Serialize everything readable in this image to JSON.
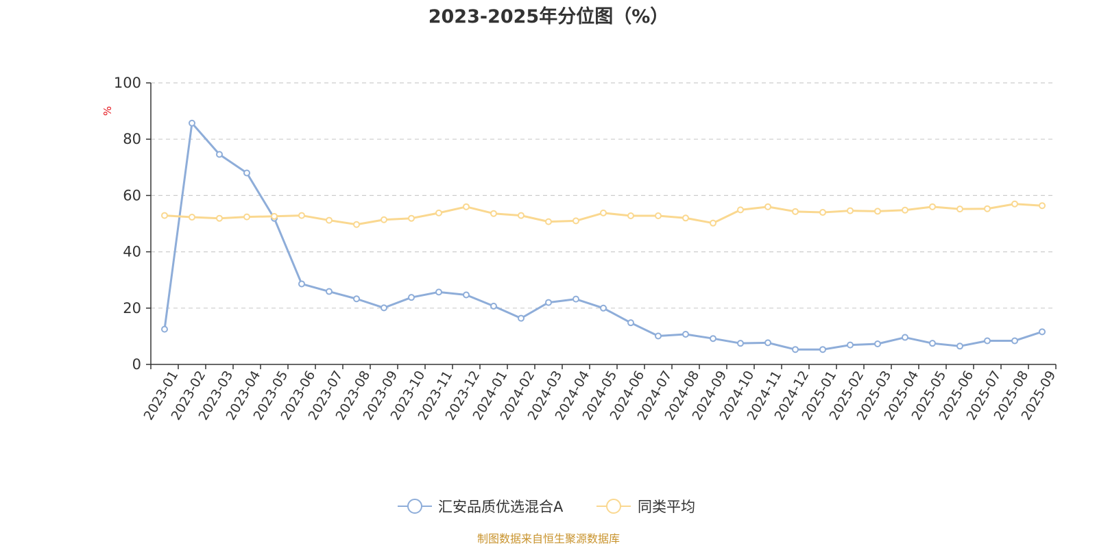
{
  "chart_data": {
    "type": "line",
    "title": "2023-2025年分位图（%）",
    "ylabel": "%",
    "ylim": [
      0,
      100
    ],
    "yticks": [
      0,
      20,
      40,
      60,
      80,
      100
    ],
    "grid": true,
    "legend_position": "bottom",
    "categories": [
      "2023-01",
      "2023-02",
      "2023-03",
      "2023-04",
      "2023-05",
      "2023-06",
      "2023-07",
      "2023-08",
      "2023-09",
      "2023-10",
      "2023-11",
      "2023-12",
      "2024-01",
      "2024-02",
      "2024-03",
      "2024-04",
      "2024-05",
      "2024-06",
      "2024-07",
      "2024-08",
      "2024-09",
      "2024-10",
      "2024-11",
      "2024-12",
      "2025-01",
      "2025-02",
      "2025-03",
      "2025-04",
      "2025-05",
      "2025-06",
      "2025-07",
      "2025-08",
      "2025-09"
    ],
    "series": [
      {
        "name": "汇安品质优选混合A",
        "color": "#8eadd9",
        "values": [
          12.5,
          85.7,
          74.6,
          68.0,
          51.9,
          28.6,
          25.9,
          23.3,
          20.1,
          23.8,
          25.7,
          24.7,
          20.7,
          16.4,
          22.0,
          23.2,
          20.0,
          14.8,
          10.1,
          10.7,
          9.2,
          7.5,
          7.7,
          5.3,
          5.3,
          6.9,
          7.3,
          9.6,
          7.5,
          6.5,
          8.4,
          8.4,
          11.6
        ]
      },
      {
        "name": "同类平均",
        "color": "#fad890",
        "values": [
          52.9,
          52.3,
          51.9,
          52.4,
          52.6,
          52.9,
          51.2,
          49.7,
          51.4,
          51.9,
          53.8,
          56.0,
          53.6,
          52.9,
          50.7,
          51.0,
          53.8,
          52.8,
          52.8,
          52.0,
          50.2,
          54.9,
          56.0,
          54.3,
          54.0,
          54.6,
          54.4,
          54.8,
          56.0,
          55.2,
          55.3,
          57.0,
          56.4
        ]
      }
    ],
    "axis_color": "#333333",
    "grid_color": "#cccccc",
    "unit_color": "#e4141b"
  },
  "source": {
    "text": "制图数据来自恒生聚源数据库",
    "color": "#c8932d"
  }
}
